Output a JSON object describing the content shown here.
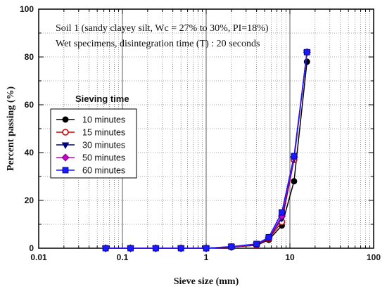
{
  "chart_data": {
    "type": "line",
    "xlabel": "Sieve size (mm)",
    "ylabel": "Percent passing  (%)",
    "x_scale": "log",
    "xlim": [
      0.01,
      100
    ],
    "ylim": [
      0,
      100
    ],
    "x_ticks": [
      "0.01",
      "0.1",
      "1",
      "10",
      "100"
    ],
    "y_ticks": [
      "0",
      "20",
      "40",
      "60",
      "80",
      "100"
    ],
    "grid": true,
    "annotations": [
      "Soil 1 (sandy clayey silt, Wc = 27% to 30%, PI=18%)",
      "Wet specimens, disintegration time (T) : 20 seconds"
    ],
    "legend": {
      "title": "Sieving time",
      "placement": "center-left"
    },
    "x": [
      0.063,
      0.125,
      0.25,
      0.5,
      1,
      2,
      4,
      5.6,
      8,
      11.2,
      16
    ],
    "series": [
      {
        "name": "10 minutes",
        "color": "#000000",
        "marker": "circle-filled",
        "values": [
          0,
          0,
          0,
          0,
          0,
          0.5,
          1.2,
          3.5,
          9.5,
          28,
          78
        ]
      },
      {
        "name": "15 minutes",
        "color": "#cc0000",
        "marker": "circle-open",
        "values": [
          0,
          0,
          0,
          0,
          0,
          0.5,
          1.3,
          4,
          11,
          37,
          82
        ]
      },
      {
        "name": "30 minutes",
        "color": "#000080",
        "marker": "triangle-down",
        "values": [
          0,
          0,
          0,
          0,
          0,
          0.6,
          1.5,
          4.2,
          12.5,
          37.5,
          82
        ]
      },
      {
        "name": "50 minutes",
        "color": "#cc00cc",
        "marker": "diamond",
        "values": [
          0,
          0,
          0,
          0,
          0,
          0.6,
          1.6,
          4.4,
          13.5,
          38,
          82
        ]
      },
      {
        "name": "60 minutes",
        "color": "#1a1aff",
        "marker": "square",
        "values": [
          0,
          0,
          0,
          0,
          0,
          0.7,
          1.8,
          4.6,
          15,
          38.5,
          82
        ]
      }
    ]
  }
}
